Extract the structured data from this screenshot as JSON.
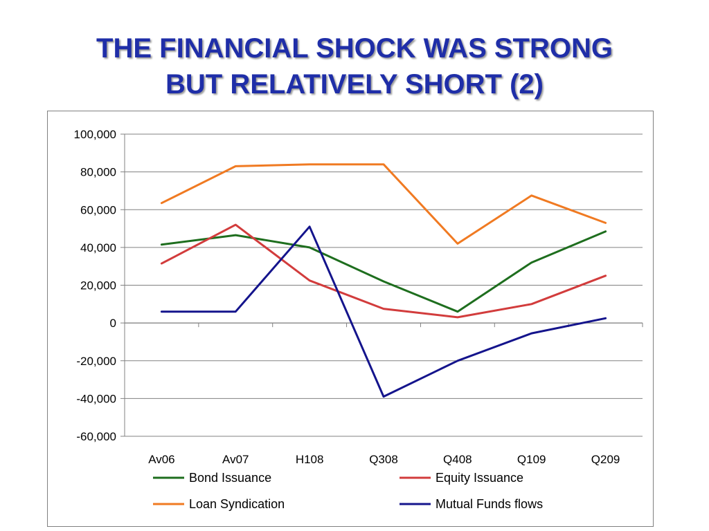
{
  "slide": {
    "title_line1": "THE FINANCIAL SHOCK WAS STRONG",
    "title_line2": "BUT RELATIVELY SHORT (2)"
  },
  "chart_data": {
    "type": "line",
    "title": "",
    "xlabel": "",
    "ylabel": "",
    "categories": [
      "Av06",
      "Av07",
      "H108",
      "Q308",
      "Q408",
      "Q109",
      "Q209"
    ],
    "ylim": [
      -60000,
      100000
    ],
    "yticks": [
      100000,
      80000,
      60000,
      40000,
      20000,
      0,
      -20000,
      -40000,
      -60000
    ],
    "ytick_labels": [
      "100,000",
      "80,000",
      "60,000",
      "40,000",
      "20,000",
      "0",
      "-20,000",
      "-40,000",
      "-60,000"
    ],
    "grid": true,
    "legend_position": "bottom",
    "series": [
      {
        "name": "Bond Issuance",
        "color": "#1e6e1e",
        "values": [
          41500,
          46500,
          40000,
          22000,
          6000,
          32000,
          48500
        ]
      },
      {
        "name": "Equity Issuance",
        "color": "#d23c3c",
        "values": [
          31500,
          52000,
          22500,
          7500,
          3000,
          10000,
          25000
        ]
      },
      {
        "name": "Loan Syndication",
        "color": "#f07a22",
        "values": [
          63500,
          83000,
          84000,
          84000,
          42000,
          67500,
          53000
        ]
      },
      {
        "name": "Mutual Funds flows",
        "color": "#14148c",
        "values": [
          6000,
          6000,
          51000,
          -39000,
          -20000,
          -5500,
          2500
        ]
      }
    ]
  }
}
